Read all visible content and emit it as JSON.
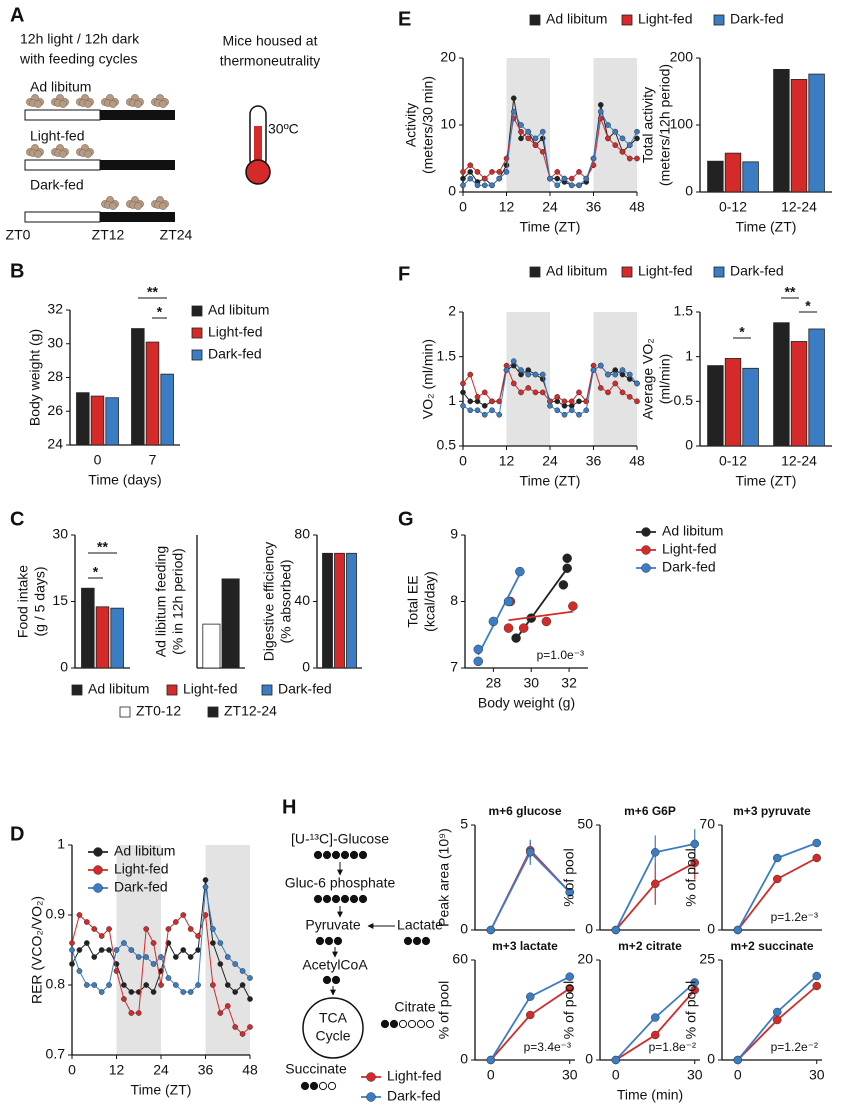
{
  "panels": [
    "A",
    "B",
    "C",
    "D",
    "E",
    "F",
    "G",
    "H"
  ],
  "panel_a": {
    "header_left": [
      "12h light / 12h dark",
      "with feeding cycles"
    ],
    "header_right": [
      "Mice housed at",
      "thermoneutrality"
    ],
    "groups": [
      "Ad libitum",
      "Light-fed",
      "Dark-fed"
    ],
    "timepoints": [
      "ZT0",
      "ZT12",
      "ZT24"
    ],
    "temperature": "30ºC"
  },
  "pathway": {
    "glucose": "[U-¹³C]-Glucose",
    "g6p": "Gluc-6 phosphate",
    "pyruvate": "Pyruvate",
    "lactate": "Lactate",
    "acetylcoa": "AcetylCoA",
    "tca": [
      "TCA",
      "Cycle"
    ],
    "citrate": "Citrate",
    "succinate": "Succinate"
  },
  "chart_data": [
    {
      "type": "bar",
      "categories": [
        "0",
        "7"
      ],
      "xlabel": "Time (days)",
      "ylabel": [
        "Body weight (g)"
      ],
      "ylim": [
        24,
        32
      ],
      "yticks": [
        24,
        26,
        28,
        30,
        32
      ],
      "legend": "right",
      "significance": [
        "**",
        "*"
      ],
      "series": [
        {
          "name": "Ad libitum",
          "color": "#222222",
          "values": [
            27.1,
            30.9
          ]
        },
        {
          "name": "Light-fed",
          "color": "#d42a2a",
          "values": [
            26.9,
            30.1
          ]
        },
        {
          "name": "Dark-fed",
          "color": "#3b7dc4",
          "values": [
            26.8,
            28.2
          ]
        }
      ]
    },
    {
      "type": "bar",
      "categories": [
        null
      ],
      "ylabel": [
        "Food intake",
        "(g / 5 days)"
      ],
      "ylim": [
        0,
        30
      ],
      "yticks": [
        0,
        15,
        30
      ],
      "legend": "bottom",
      "significance": [
        "*",
        "**"
      ],
      "series": [
        {
          "name": "Ad libitum",
          "color": "#222222",
          "values": [
            18
          ]
        },
        {
          "name": "Light-fed",
          "color": "#d42a2a",
          "values": [
            13.8
          ]
        },
        {
          "name": "Dark-fed",
          "color": "#3b7dc4",
          "values": [
            13.5
          ]
        }
      ]
    },
    {
      "type": "bar",
      "categories": [
        null
      ],
      "ylabel": [
        "Ad libitum feeding",
        "(% in 12h period)"
      ],
      "ylim": [
        0,
        100
      ],
      "legend": "bottom",
      "series": [
        {
          "name": "ZT0-12",
          "color": "#ffffff",
          "values": [
            33
          ]
        },
        {
          "name": "ZT12-24",
          "color": "#222222",
          "values": [
            67
          ]
        }
      ]
    },
    {
      "type": "bar",
      "categories": [
        null
      ],
      "ylabel": [
        "Digestive efficiency",
        "(% absorbed)"
      ],
      "ylim": [
        0,
        80
      ],
      "yticks": [
        0,
        40,
        80
      ],
      "series": [
        {
          "name": "Ad libitum",
          "color": "#222222",
          "values": [
            69
          ]
        },
        {
          "name": "Light-fed",
          "color": "#d42a2a",
          "values": [
            69
          ]
        },
        {
          "name": "Dark-fed",
          "color": "#3b7dc4",
          "values": [
            69
          ]
        }
      ]
    },
    {
      "type": "line",
      "xlabel": "Time (ZT)",
      "ylabel": [
        "RER (VCO₂/VO₂)"
      ],
      "x": [
        0,
        2,
        4,
        6,
        8,
        10,
        12,
        14,
        16,
        18,
        20,
        22,
        24,
        26,
        28,
        30,
        32,
        34,
        36,
        38,
        40,
        42,
        44,
        46,
        48
      ],
      "xlim": [
        0,
        48
      ],
      "xticks": [
        0,
        12,
        24,
        36,
        48
      ],
      "ylim": [
        0.7,
        1.0
      ],
      "yticks": [
        0.7,
        0.8,
        0.9,
        1
      ],
      "shaded": [
        [
          12,
          24
        ],
        [
          36,
          48
        ]
      ],
      "legend": "top-left",
      "series": [
        {
          "name": "Ad libitum",
          "color": "#222222",
          "values": [
            0.83,
            0.85,
            0.86,
            0.84,
            0.85,
            0.85,
            0.83,
            0.8,
            0.79,
            0.79,
            0.8,
            0.79,
            0.82,
            0.86,
            0.84,
            0.85,
            0.84,
            0.85,
            0.95,
            0.86,
            0.83,
            0.8,
            0.79,
            0.8,
            0.78
          ]
        },
        {
          "name": "Light-fed",
          "color": "#d42a2a",
          "values": [
            0.86,
            0.9,
            0.89,
            0.88,
            0.87,
            0.88,
            0.82,
            0.78,
            0.76,
            0.76,
            0.88,
            0.86,
            0.8,
            0.88,
            0.89,
            0.9,
            0.88,
            0.87,
            0.9,
            0.8,
            0.76,
            0.77,
            0.74,
            0.73,
            0.74
          ]
        },
        {
          "name": "Dark-fed",
          "color": "#3b7dc4",
          "values": [
            0.85,
            0.82,
            0.8,
            0.8,
            0.79,
            0.8,
            0.85,
            0.86,
            0.85,
            0.84,
            0.84,
            0.83,
            0.84,
            0.81,
            0.8,
            0.79,
            0.79,
            0.8,
            0.94,
            0.88,
            0.86,
            0.84,
            0.83,
            0.82,
            0.81
          ]
        }
      ]
    },
    {
      "type": "line",
      "xlabel": "Time (ZT)",
      "ylabel": [
        "Activity",
        "(meters/30 min)"
      ],
      "x": [
        0,
        2,
        4,
        6,
        8,
        10,
        12,
        14,
        16,
        18,
        20,
        22,
        24,
        26,
        28,
        30,
        32,
        34,
        36,
        38,
        40,
        42,
        44,
        46,
        48
      ],
      "xlim": [
        0,
        48
      ],
      "xticks": [
        0,
        12,
        24,
        36,
        48
      ],
      "ylim": [
        0,
        20
      ],
      "yticks": [
        0,
        10,
        20
      ],
      "shaded": [
        [
          12,
          24
        ],
        [
          36,
          48
        ]
      ],
      "legend": "top",
      "series": [
        {
          "name": "Ad libitum",
          "color": "#222222",
          "values": [
            2,
            3,
            1.5,
            2,
            1,
            2,
            4,
            14,
            8,
            9,
            7,
            8,
            2,
            2,
            1.5,
            1,
            1,
            1.5,
            5,
            13,
            8,
            9,
            6,
            7,
            8
          ]
        },
        {
          "name": "Light-fed",
          "color": "#d42a2a",
          "values": [
            3,
            4,
            3,
            2,
            3,
            3,
            5,
            11,
            9,
            8,
            7,
            6,
            2,
            3,
            2,
            2,
            3,
            2,
            4,
            11,
            8,
            7,
            6,
            5,
            5
          ]
        },
        {
          "name": "Dark-fed",
          "color": "#3b7dc4",
          "values": [
            1,
            2,
            1,
            1,
            1,
            2,
            3,
            12,
            10,
            9,
            8,
            9,
            2,
            1,
            2,
            1,
            1,
            2,
            5,
            12,
            10,
            9,
            8,
            7,
            9
          ]
        }
      ]
    },
    {
      "type": "bar",
      "categories": [
        "0-12",
        "12-24"
      ],
      "xlabel": "Time (ZT)",
      "ylabel": [
        "Total activity",
        "(meters/12h period)"
      ],
      "ylim": [
        0,
        200
      ],
      "yticks": [
        0,
        100,
        200
      ],
      "series": [
        {
          "name": "Ad libitum",
          "color": "#222222",
          "values": [
            46,
            183
          ]
        },
        {
          "name": "Light-fed",
          "color": "#d42a2a",
          "values": [
            58,
            168
          ]
        },
        {
          "name": "Dark-fed",
          "color": "#3b7dc4",
          "values": [
            45,
            176
          ]
        }
      ]
    },
    {
      "type": "line",
      "xlabel": "Time (ZT)",
      "ylabel": [
        "VO₂ (ml/min)"
      ],
      "x": [
        0,
        2,
        4,
        6,
        8,
        10,
        12,
        14,
        16,
        18,
        20,
        22,
        24,
        26,
        28,
        30,
        32,
        34,
        36,
        38,
        40,
        42,
        44,
        46,
        48
      ],
      "xlim": [
        0,
        48
      ],
      "xticks": [
        0,
        12,
        24,
        36,
        48
      ],
      "ylim": [
        0.5,
        2
      ],
      "yticks": [
        0.5,
        1,
        1.5,
        2
      ],
      "shaded": [
        [
          12,
          24
        ],
        [
          36,
          48
        ]
      ],
      "legend": "top",
      "series": [
        {
          "name": "Ad libitum",
          "color": "#222222",
          "values": [
            1.1,
            1.0,
            1.0,
            0.95,
            1.0,
            1.0,
            1.35,
            1.4,
            1.3,
            1.35,
            1.3,
            1.25,
            1.0,
            1.0,
            0.95,
            0.95,
            1.0,
            1.0,
            1.35,
            1.4,
            1.3,
            1.35,
            1.3,
            1.25,
            1.2
          ]
        },
        {
          "name": "Light-fed",
          "color": "#d42a2a",
          "values": [
            1.2,
            1.3,
            1.05,
            1.1,
            1.0,
            1.0,
            1.4,
            1.2,
            1.1,
            1.15,
            1.1,
            1.1,
            1.0,
            1.05,
            1.0,
            1.0,
            1.1,
            1.0,
            1.4,
            1.15,
            1.1,
            1.2,
            1.1,
            1.05,
            1.0
          ]
        },
        {
          "name": "Dark-fed",
          "color": "#3b7dc4",
          "values": [
            0.95,
            0.9,
            0.9,
            0.85,
            0.9,
            0.85,
            1.35,
            1.45,
            1.35,
            1.3,
            1.3,
            1.3,
            0.95,
            0.9,
            0.85,
            0.9,
            0.85,
            0.9,
            1.35,
            1.4,
            1.3,
            1.3,
            1.35,
            1.3,
            1.2
          ]
        }
      ]
    },
    {
      "type": "bar",
      "categories": [
        "0-12",
        "12-24"
      ],
      "xlabel": "Time (ZT)",
      "ylabel": [
        "Average VO₂",
        "(ml/min)"
      ],
      "ylim": [
        0,
        1.5
      ],
      "yticks": [
        0,
        0.5,
        1,
        1.5
      ],
      "significance": [
        "*",
        "**",
        "*"
      ],
      "series": [
        {
          "name": "Ad libitum",
          "color": "#222222",
          "values": [
            0.9,
            1.38
          ]
        },
        {
          "name": "Light-fed",
          "color": "#d42a2a",
          "values": [
            0.98,
            1.17
          ]
        },
        {
          "name": "Dark-fed",
          "color": "#3b7dc4",
          "values": [
            0.87,
            1.31
          ]
        }
      ]
    },
    {
      "type": "scatter",
      "xlabel": "Body weight (g)",
      "ylabel": [
        "Total EE",
        "(kcal/day)"
      ],
      "xlim": [
        26.5,
        33
      ],
      "xticks": [
        28,
        30,
        32
      ],
      "ylim": [
        7,
        9
      ],
      "yticks": [
        7,
        8,
        9
      ],
      "annotation": "p=1.0e⁻³",
      "legend": "right",
      "series": [
        {
          "name": "Ad libitum",
          "color": "#222222",
          "x": [
            29.2,
            30.0,
            31.7,
            31.9,
            31.9
          ],
          "values": [
            7.45,
            7.75,
            8.25,
            8.5,
            8.65
          ]
        },
        {
          "name": "Light-fed",
          "color": "#d42a2a",
          "x": [
            28.8,
            29.6,
            30.8,
            32.2,
            28.9
          ],
          "values": [
            7.6,
            7.6,
            7.7,
            7.93,
            8.0
          ]
        },
        {
          "name": "Dark-fed",
          "color": "#3b7dc4",
          "x": [
            27.2,
            27.2,
            28.0,
            28.8,
            29.4
          ],
          "values": [
            7.1,
            7.28,
            7.7,
            8.0,
            8.45
          ]
        }
      ]
    },
    {
      "type": "line",
      "title": "m+6 glucose",
      "ylabel": [
        "Peak area (10⁹)"
      ],
      "x": [
        0,
        15,
        30
      ],
      "xlim": [
        -6,
        32
      ],
      "ylim": [
        0,
        5
      ],
      "yticks": [
        0,
        5
      ],
      "legend": "bottom",
      "series": [
        {
          "name": "Light-fed",
          "color": "#d42a2a",
          "values": [
            0,
            3.8,
            1.8
          ],
          "errors": [
            0,
            0.4,
            0.15
          ]
        },
        {
          "name": "Dark-fed",
          "color": "#3b7dc4",
          "values": [
            0,
            3.7,
            1.8
          ],
          "errors": [
            0,
            0.6,
            0.15
          ]
        }
      ]
    },
    {
      "type": "line",
      "title": "m+6 G6P",
      "ylabel": [
        "% of pool"
      ],
      "x": [
        0,
        15,
        30
      ],
      "xlim": [
        -6,
        32
      ],
      "ylim": [
        0,
        50
      ],
      "yticks": [
        0,
        50
      ],
      "series": [
        {
          "name": "Light-fed",
          "color": "#d42a2a",
          "values": [
            0,
            22,
            32
          ],
          "errors": [
            0,
            10,
            8
          ]
        },
        {
          "name": "Dark-fed",
          "color": "#3b7dc4",
          "values": [
            0,
            37,
            41
          ],
          "errors": [
            0,
            8,
            7
          ]
        }
      ]
    },
    {
      "type": "line",
      "title": "m+3 pyruvate",
      "ylabel": [
        "% of pool"
      ],
      "x": [
        0,
        15,
        30
      ],
      "xlim": [
        -6,
        32
      ],
      "ylim": [
        0,
        70
      ],
      "yticks": [
        0,
        70
      ],
      "annotation": "p=1.2e⁻³",
      "series": [
        {
          "name": "Light-fed",
          "color": "#d42a2a",
          "values": [
            0,
            34,
            48
          ],
          "errors": [
            0,
            2,
            2
          ]
        },
        {
          "name": "Dark-fed",
          "color": "#3b7dc4",
          "values": [
            0,
            48,
            58
          ],
          "errors": [
            0,
            2,
            2
          ]
        }
      ]
    },
    {
      "type": "line",
      "title": "m+3 lactate",
      "ylabel": [
        "% of pool"
      ],
      "x": [
        0,
        15,
        30
      ],
      "xlim": [
        -6,
        32
      ],
      "xticks": [
        0,
        30
      ],
      "ylim": [
        0,
        60
      ],
      "yticks": [
        0,
        60
      ],
      "annotation": "p=3.4e⁻³",
      "series": [
        {
          "name": "Light-fed",
          "color": "#d42a2a",
          "values": [
            0,
            27,
            43
          ],
          "errors": [
            0,
            2,
            1.5
          ]
        },
        {
          "name": "Dark-fed",
          "color": "#3b7dc4",
          "values": [
            0,
            38,
            50
          ],
          "errors": [
            0,
            2,
            1.5
          ]
        }
      ]
    },
    {
      "type": "line",
      "title": "m+2 citrate",
      "ylabel": [
        "% of pool"
      ],
      "xlabel": "Time (min)",
      "x": [
        0,
        15,
        30
      ],
      "xlim": [
        -6,
        32
      ],
      "xticks": [
        0,
        30
      ],
      "ylim": [
        0,
        20
      ],
      "yticks": [
        0,
        20
      ],
      "annotation": "p=1.8e⁻²",
      "series": [
        {
          "name": "Light-fed",
          "color": "#d42a2a",
          "values": [
            0,
            5,
            14
          ],
          "errors": [
            0,
            0.6,
            0.6
          ]
        },
        {
          "name": "Dark-fed",
          "color": "#3b7dc4",
          "values": [
            0,
            8.5,
            15.5
          ],
          "errors": [
            0,
            0.6,
            0.6
          ]
        }
      ]
    },
    {
      "type": "line",
      "title": "m+2 succinate",
      "ylabel": [
        "% of pool"
      ],
      "x": [
        0,
        15,
        30
      ],
      "xlim": [
        -6,
        32
      ],
      "xticks": [
        0,
        30
      ],
      "ylim": [
        0,
        25
      ],
      "yticks": [
        0,
        25
      ],
      "annotation": "p=1.2e⁻²",
      "series": [
        {
          "name": "Light-fed",
          "color": "#d42a2a",
          "values": [
            0,
            10,
            18.5
          ],
          "errors": [
            0,
            0.8,
            0.8
          ]
        },
        {
          "name": "Dark-fed",
          "color": "#3b7dc4",
          "values": [
            0,
            12,
            21
          ],
          "errors": [
            0,
            0.8,
            0.8
          ]
        }
      ]
    }
  ]
}
